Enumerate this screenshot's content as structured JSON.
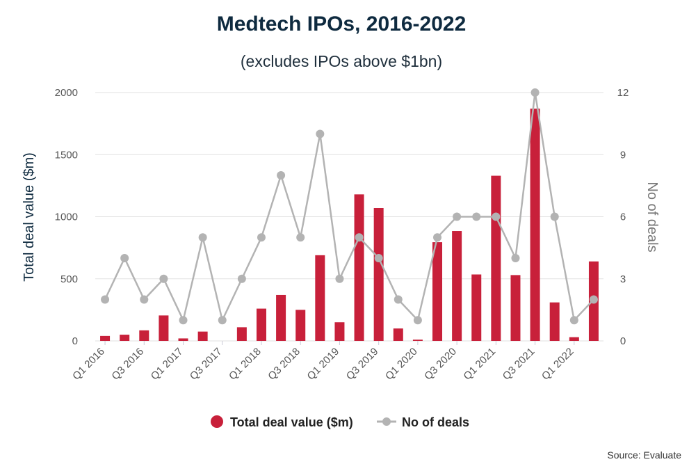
{
  "title": "Medtech IPOs, 2016-2022",
  "subtitle": "(excludes IPOs above $1bn)",
  "source": "Source: Evaluate",
  "colors": {
    "bar": "#c8203a",
    "line": "#b3b3b3",
    "title": "#0e2a3f"
  },
  "chart_data": {
    "type": "bar",
    "categories": [
      "Q1 2016",
      "Q2 2016",
      "Q3 2016",
      "Q4 2016",
      "Q1 2017",
      "Q2 2017",
      "Q3 2017",
      "Q4 2017",
      "Q1 2018",
      "Q2 2018",
      "Q3 2018",
      "Q4 2018",
      "Q1 2019",
      "Q2 2019",
      "Q3 2019",
      "Q4 2019",
      "Q1 2020",
      "Q2 2020",
      "Q3 2020",
      "Q4 2020",
      "Q1 2021",
      "Q2 2021",
      "Q3 2021",
      "Q4 2021",
      "Q1 2022",
      "Q2 2022"
    ],
    "x_tick_labels": [
      "Q1 2016",
      "Q3 2016",
      "Q1 2017",
      "Q3 2017",
      "Q1 2018",
      "Q3 2018",
      "Q1 2019",
      "Q3 2019",
      "Q1 2020",
      "Q3 2020",
      "Q1 2021",
      "Q3 2021",
      "Q1 2022"
    ],
    "series": [
      {
        "name": "Total deal value ($m)",
        "type": "bar",
        "axis": "left",
        "values": [
          40,
          50,
          85,
          205,
          20,
          75,
          0,
          110,
          260,
          370,
          250,
          690,
          150,
          1180,
          1070,
          100,
          10,
          795,
          885,
          535,
          1330,
          530,
          1870,
          310,
          30,
          640
        ]
      },
      {
        "name": "No of deals",
        "type": "line",
        "axis": "right",
        "values": [
          2,
          4,
          2,
          3,
          1,
          5,
          1,
          3,
          5,
          8,
          5,
          10,
          3,
          5,
          4,
          2,
          1,
          5,
          6,
          6,
          6,
          4,
          12,
          6,
          1,
          2
        ]
      }
    ],
    "ylabel": "Total deal value ($m)",
    "y2label": "No of deals",
    "ylim": [
      0,
      2000
    ],
    "y2lim": [
      0,
      12
    ],
    "yticks": [
      "0",
      "500",
      "1000",
      "1500",
      "2000"
    ],
    "y2ticks": [
      "0",
      "3",
      "6",
      "9",
      "12"
    ],
    "grid": true,
    "legend_position": "bottom-center"
  }
}
